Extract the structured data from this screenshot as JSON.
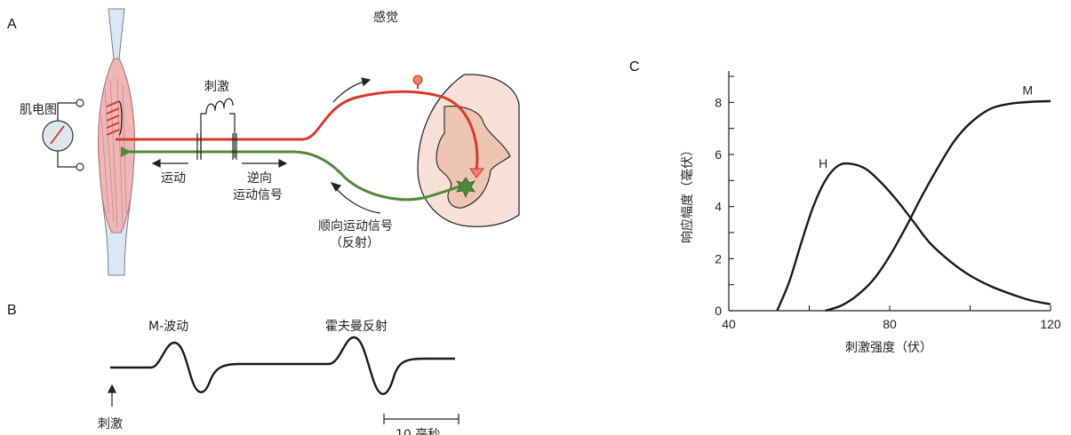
{
  "panelA": {
    "letter": "A",
    "sensory_label": "感觉",
    "emg_label": "肌电图",
    "stimulus_label": "刺激",
    "motor_label": "运动",
    "antidromic_line1": "逆向",
    "antidromic_line2": "运动信号",
    "orthodromic_line1": "顺向运动信号",
    "orthodromic_line2": "（反射）",
    "colors": {
      "sensory": "#d93a2a",
      "motor": "#4f8a3a",
      "muscle": "#eeb6b6",
      "cord": "#f7e1d6"
    }
  },
  "panelB": {
    "letter": "B",
    "m_wave_label": "M-波动",
    "h_reflex_label": "霍夫曼反射",
    "stimulus_label": "刺激",
    "scale_label": "10 毫秒"
  },
  "chart_data": {
    "type": "line",
    "letter": "C",
    "xlabel": "刺激强度（伏）",
    "ylabel": "响应幅度（毫伏）",
    "xlim": [
      40,
      120
    ],
    "ylim": [
      0,
      9
    ],
    "x_ticks": [
      40,
      80,
      120
    ],
    "y_ticks": [
      0,
      2,
      4,
      6,
      8
    ],
    "series": [
      {
        "name": "H",
        "x": [
          52,
          55,
          58,
          61,
          64,
          67,
          70,
          74,
          78,
          82,
          86,
          90,
          95,
          100,
          105,
          110,
          115,
          120
        ],
        "y": [
          0,
          1.1,
          2.6,
          4.0,
          5.0,
          5.55,
          5.65,
          5.45,
          4.9,
          4.2,
          3.4,
          2.6,
          1.9,
          1.35,
          0.95,
          0.65,
          0.4,
          0.25
        ]
      },
      {
        "name": "M",
        "x": [
          64,
          68,
          72,
          76,
          80,
          84,
          88,
          92,
          96,
          100,
          105,
          110,
          115,
          120
        ],
        "y": [
          0,
          0.2,
          0.6,
          1.2,
          2.1,
          3.2,
          4.4,
          5.5,
          6.5,
          7.2,
          7.75,
          7.95,
          8.02,
          8.05
        ]
      }
    ]
  }
}
